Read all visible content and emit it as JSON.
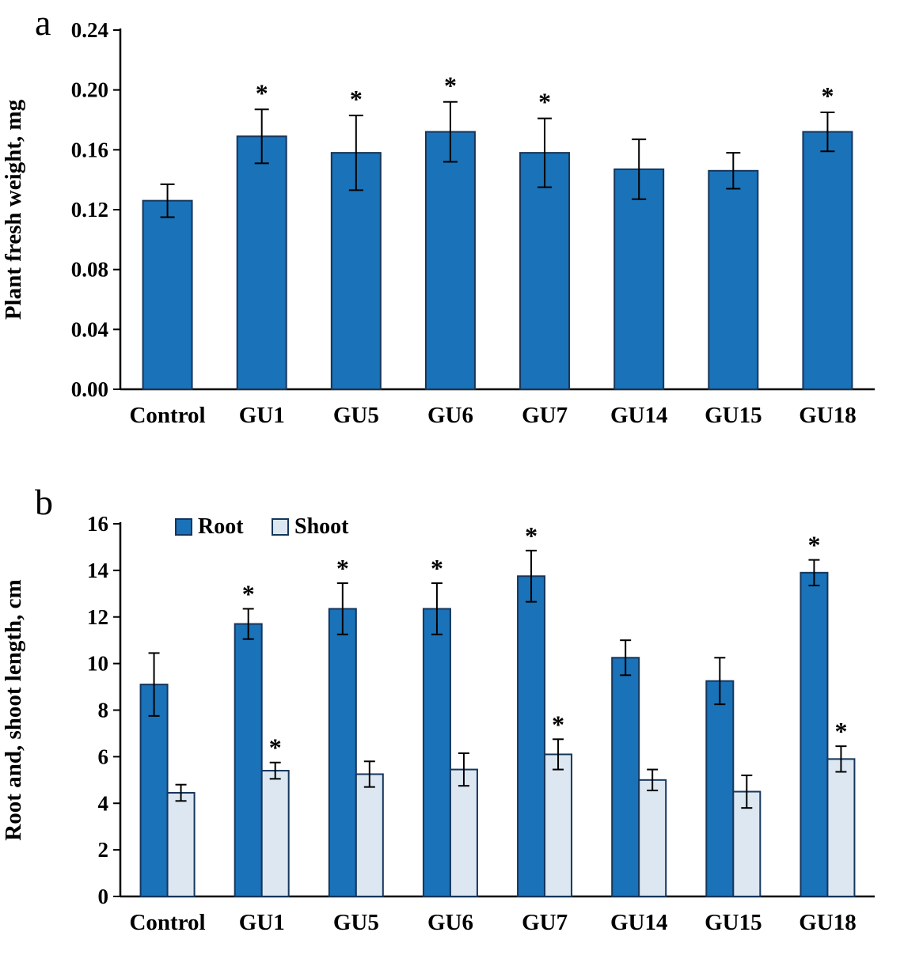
{
  "figure": {
    "panels": [
      {
        "label": "a"
      },
      {
        "label": "b"
      }
    ]
  },
  "chart_data": [
    {
      "type": "bar",
      "panel": "a",
      "title": "",
      "xlabel": "",
      "ylabel": "Plant fresh weight, mg",
      "ylim": [
        0,
        0.24
      ],
      "ytick_step": 0.04,
      "ytick_decimals": 2,
      "grid": false,
      "legend": null,
      "categories": [
        "Control",
        "GU1",
        "GU5",
        "GU6",
        "GU7",
        "GU14",
        "GU15",
        "GU18"
      ],
      "series": [
        {
          "name": "Plant fresh weight",
          "color": "#1A72B8",
          "border": "#16365C",
          "values": [
            0.126,
            0.169,
            0.158,
            0.172,
            0.158,
            0.147,
            0.146,
            0.172
          ],
          "errors": [
            0.011,
            0.018,
            0.025,
            0.02,
            0.023,
            0.02,
            0.012,
            0.013
          ],
          "significance": [
            "",
            "*",
            "*",
            "*",
            "*",
            "",
            "",
            "*"
          ]
        }
      ]
    },
    {
      "type": "bar",
      "panel": "b",
      "title": "",
      "xlabel": "",
      "ylabel": "Root and, shoot length, cm",
      "ylim": [
        0,
        16
      ],
      "ytick_step": 2,
      "ytick_decimals": 0,
      "grid": false,
      "legend": {
        "position": "top-left-inside",
        "entries": [
          "Root",
          "Shoot"
        ]
      },
      "categories": [
        "Control",
        "GU1",
        "GU5",
        "GU6",
        "GU7",
        "GU14",
        "GU15",
        "GU18"
      ],
      "series": [
        {
          "name": "Root",
          "color": "#1A72B8",
          "border": "#16365C",
          "values": [
            9.1,
            11.7,
            12.35,
            12.35,
            13.75,
            10.25,
            9.25,
            13.9
          ],
          "errors": [
            1.35,
            0.65,
            1.1,
            1.1,
            1.1,
            0.75,
            1.0,
            0.55
          ],
          "significance": [
            "",
            "*",
            "*",
            "*",
            "*",
            "",
            "",
            "*"
          ]
        },
        {
          "name": "Shoot",
          "color": "#DDE7F2",
          "border": "#16365C",
          "values": [
            4.45,
            5.4,
            5.25,
            5.45,
            6.1,
            5.0,
            4.5,
            5.9
          ],
          "errors": [
            0.35,
            0.35,
            0.55,
            0.7,
            0.65,
            0.45,
            0.7,
            0.55
          ],
          "significance": [
            "",
            "*",
            "",
            "",
            "*",
            "",
            "",
            "*"
          ]
        }
      ]
    }
  ]
}
